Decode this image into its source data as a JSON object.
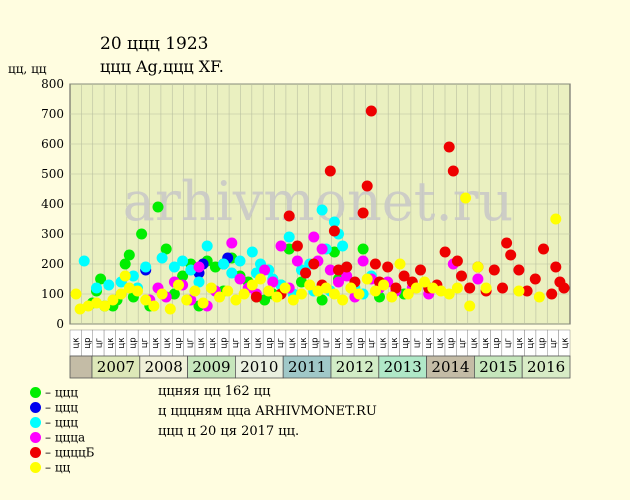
{
  "header": {
    "title": "20 ццц 1923",
    "subtitle": "ццц Ag,ццц XF.",
    "y_axis_label": "цц, цц"
  },
  "watermark": "arhivmonet.ru",
  "legend": [
    {
      "label": "– ццц",
      "color": "#00ee00"
    },
    {
      "label": "– ццц",
      "color": "#0000ee"
    },
    {
      "label": "– ццц",
      "color": "#00ffff"
    },
    {
      "label": "– цццa",
      "color": "#ff00ff"
    },
    {
      "label": "– ццццБ",
      "color": "#ee0000"
    },
    {
      "label": "– цц",
      "color": "#ffff00"
    }
  ],
  "info": {
    "line1": "ццняя цц 162 цц",
    "line2": "ц цццням цца ARHIVMONET.RU",
    "line3": "ццц ц 20 ця 2017 цц."
  },
  "chart_data": {
    "type": "scatter",
    "ylim": [
      0,
      800
    ],
    "yticks": [
      0,
      100,
      200,
      300,
      400,
      500,
      600,
      700,
      800
    ],
    "grid": true,
    "quarter_labels": [
      "цк",
      "цр",
      "цг",
      "цк",
      "цк",
      "цр",
      "цг",
      "цк",
      "цк",
      "цр",
      "цг",
      "цк",
      "цк",
      "цр",
      "цг",
      "цк",
      "цк",
      "цр",
      "цг",
      "цк",
      "цк",
      "цр",
      "цг",
      "цк",
      "цк",
      "цр",
      "цг",
      "цк",
      "цк",
      "цр",
      "цг",
      "цк",
      "цк",
      "цр",
      "цг",
      "цк",
      "цк",
      "цр",
      "цг",
      "цк",
      "цк",
      "цр",
      "цг",
      "цк"
    ],
    "years": [
      {
        "label": "2007",
        "color": "#dde8b8"
      },
      {
        "label": "2008",
        "color": "#f0f0d8"
      },
      {
        "label": "2009",
        "color": "#c6e6bc"
      },
      {
        "label": "2010",
        "color": "#eaf0e0"
      },
      {
        "label": "2011",
        "color": "#a0c8c8"
      },
      {
        "label": "2012",
        "color": "#d2ecc6"
      },
      {
        "label": "2013",
        "color": "#b0e8c8"
      },
      {
        "label": "2014",
        "color": "#c4bca6"
      },
      {
        "label": "2015",
        "color": "#c6e6bc"
      },
      {
        "label": "2016",
        "color": "#d8ecc6"
      }
    ],
    "series": [
      {
        "color": "#00ee00",
        "points": [
          [
            4,
            70
          ],
          [
            5,
            110
          ],
          [
            6,
            150
          ],
          [
            7,
            60
          ],
          [
            9,
            60
          ],
          [
            10,
            80
          ],
          [
            12,
            200
          ],
          [
            13,
            230
          ],
          [
            14,
            90
          ],
          [
            16,
            300
          ],
          [
            18,
            60
          ],
          [
            20,
            390
          ],
          [
            22,
            250
          ],
          [
            24,
            100
          ],
          [
            26,
            160
          ],
          [
            28,
            200
          ],
          [
            30,
            60
          ],
          [
            32,
            210
          ],
          [
            34,
            190
          ],
          [
            36,
            110
          ],
          [
            38,
            220
          ],
          [
            40,
            160
          ],
          [
            42,
            140
          ],
          [
            44,
            90
          ],
          [
            46,
            80
          ],
          [
            48,
            100
          ],
          [
            50,
            130
          ],
          [
            52,
            250
          ],
          [
            55,
            140
          ],
          [
            60,
            80
          ],
          [
            63,
            240
          ],
          [
            64,
            150
          ],
          [
            70,
            250
          ],
          [
            74,
            90
          ],
          [
            80,
            100
          ]
        ]
      },
      {
        "color": "#0000ee",
        "points": [
          [
            17,
            180
          ],
          [
            30,
            170
          ],
          [
            31,
            200
          ],
          [
            36,
            200
          ],
          [
            37,
            220
          ]
        ]
      },
      {
        "color": "#00ffff",
        "points": [
          [
            2,
            210
          ],
          [
            5,
            120
          ],
          [
            8,
            130
          ],
          [
            11,
            140
          ],
          [
            14,
            160
          ],
          [
            15,
            120
          ],
          [
            17,
            190
          ],
          [
            21,
            220
          ],
          [
            24,
            190
          ],
          [
            26,
            210
          ],
          [
            28,
            180
          ],
          [
            30,
            140
          ],
          [
            32,
            260
          ],
          [
            34,
            110
          ],
          [
            36,
            200
          ],
          [
            38,
            170
          ],
          [
            40,
            210
          ],
          [
            43,
            240
          ],
          [
            44,
            170
          ],
          [
            45,
            200
          ],
          [
            47,
            180
          ],
          [
            48,
            150
          ],
          [
            50,
            130
          ],
          [
            52,
            290
          ],
          [
            53,
            100
          ],
          [
            55,
            180
          ],
          [
            57,
            200
          ],
          [
            58,
            110
          ],
          [
            60,
            380
          ],
          [
            61,
            250
          ],
          [
            62,
            110
          ],
          [
            63,
            340
          ],
          [
            64,
            300
          ],
          [
            65,
            260
          ],
          [
            66,
            190
          ],
          [
            68,
            120
          ],
          [
            70,
            100
          ],
          [
            72,
            160
          ],
          [
            74,
            120
          ]
        ]
      },
      {
        "color": "#ff00ff",
        "points": [
          [
            18,
            80
          ],
          [
            20,
            120
          ],
          [
            22,
            90
          ],
          [
            24,
            140
          ],
          [
            26,
            130
          ],
          [
            28,
            80
          ],
          [
            30,
            190
          ],
          [
            32,
            60
          ],
          [
            34,
            110
          ],
          [
            38,
            270
          ],
          [
            40,
            150
          ],
          [
            42,
            120
          ],
          [
            44,
            100
          ],
          [
            46,
            180
          ],
          [
            48,
            140
          ],
          [
            50,
            260
          ],
          [
            52,
            120
          ],
          [
            54,
            210
          ],
          [
            56,
            170
          ],
          [
            58,
            290
          ],
          [
            59,
            210
          ],
          [
            60,
            250
          ],
          [
            62,
            180
          ],
          [
            64,
            140
          ],
          [
            66,
            160
          ],
          [
            68,
            90
          ],
          [
            70,
            210
          ],
          [
            72,
            150
          ],
          [
            74,
            120
          ],
          [
            76,
            140
          ],
          [
            78,
            110
          ],
          [
            82,
            120
          ],
          [
            86,
            100
          ],
          [
            92,
            200
          ],
          [
            98,
            150
          ]
        ]
      },
      {
        "color": "#ee0000",
        "points": [
          [
            44,
            90
          ],
          [
            50,
            100
          ],
          [
            52,
            360
          ],
          [
            54,
            260
          ],
          [
            56,
            170
          ],
          [
            58,
            200
          ],
          [
            60,
            130
          ],
          [
            62,
            510
          ],
          [
            63,
            310
          ],
          [
            64,
            180
          ],
          [
            66,
            190
          ],
          [
            68,
            140
          ],
          [
            70,
            370
          ],
          [
            71,
            460
          ],
          [
            72,
            710
          ],
          [
            73,
            200
          ],
          [
            74,
            140
          ],
          [
            76,
            190
          ],
          [
            78,
            120
          ],
          [
            80,
            160
          ],
          [
            82,
            140
          ],
          [
            84,
            180
          ],
          [
            86,
            120
          ],
          [
            88,
            130
          ],
          [
            90,
            240
          ],
          [
            91,
            590
          ],
          [
            92,
            510
          ],
          [
            93,
            210
          ],
          [
            94,
            160
          ],
          [
            96,
            120
          ],
          [
            98,
            190
          ],
          [
            100,
            110
          ],
          [
            102,
            180
          ],
          [
            104,
            120
          ],
          [
            105,
            270
          ],
          [
            106,
            230
          ],
          [
            108,
            180
          ],
          [
            110,
            110
          ],
          [
            112,
            150
          ],
          [
            114,
            250
          ],
          [
            116,
            100
          ],
          [
            117,
            190
          ],
          [
            118,
            140
          ],
          [
            119,
            120
          ]
        ]
      },
      {
        "color": "#ffff00",
        "points": [
          [
            0,
            100
          ],
          [
            1,
            50
          ],
          [
            3,
            60
          ],
          [
            5,
            70
          ],
          [
            7,
            60
          ],
          [
            9,
            80
          ],
          [
            11,
            100
          ],
          [
            12,
            160
          ],
          [
            13,
            120
          ],
          [
            15,
            110
          ],
          [
            17,
            80
          ],
          [
            19,
            60
          ],
          [
            21,
            100
          ],
          [
            23,
            50
          ],
          [
            25,
            130
          ],
          [
            27,
            80
          ],
          [
            29,
            110
          ],
          [
            31,
            70
          ],
          [
            33,
            120
          ],
          [
            35,
            90
          ],
          [
            37,
            110
          ],
          [
            39,
            80
          ],
          [
            41,
            100
          ],
          [
            43,
            130
          ],
          [
            45,
            150
          ],
          [
            47,
            110
          ],
          [
            49,
            90
          ],
          [
            51,
            120
          ],
          [
            53,
            80
          ],
          [
            55,
            100
          ],
          [
            57,
            130
          ],
          [
            59,
            110
          ],
          [
            61,
            120
          ],
          [
            63,
            100
          ],
          [
            65,
            80
          ],
          [
            67,
            120
          ],
          [
            69,
            100
          ],
          [
            71,
            150
          ],
          [
            73,
            110
          ],
          [
            75,
            130
          ],
          [
            77,
            90
          ],
          [
            79,
            200
          ],
          [
            81,
            100
          ],
          [
            83,
            120
          ],
          [
            85,
            140
          ],
          [
            87,
            120
          ],
          [
            89,
            110
          ],
          [
            91,
            100
          ],
          [
            93,
            120
          ],
          [
            95,
            420
          ],
          [
            96,
            60
          ],
          [
            98,
            190
          ],
          [
            100,
            120
          ],
          [
            108,
            110
          ],
          [
            113,
            90
          ],
          [
            117,
            350
          ]
        ]
      }
    ]
  }
}
